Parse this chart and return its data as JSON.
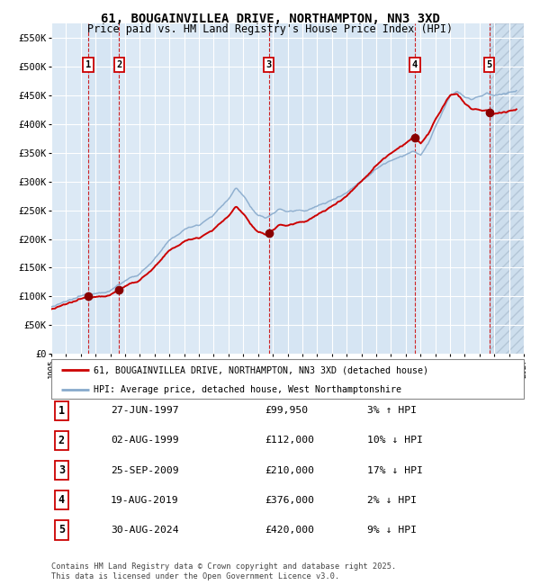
{
  "title": "61, BOUGAINVILLEA DRIVE, NORTHAMPTON, NN3 3XD",
  "subtitle": "Price paid vs. HM Land Registry's House Price Index (HPI)",
  "ylim": [
    0,
    575000
  ],
  "yticks": [
    0,
    50000,
    100000,
    150000,
    200000,
    250000,
    300000,
    350000,
    400000,
    450000,
    500000,
    550000
  ],
  "ytick_labels": [
    "£0",
    "£50K",
    "£100K",
    "£150K",
    "£200K",
    "£250K",
    "£300K",
    "£350K",
    "£400K",
    "£450K",
    "£500K",
    "£550K"
  ],
  "xlim_start": 1995.0,
  "xlim_end": 2027.0,
  "bg_color": "#dce9f5",
  "grid_color": "#ffffff",
  "sale_dates_decimal": [
    1997.49,
    1999.59,
    2009.73,
    2019.63,
    2024.66
  ],
  "sale_prices": [
    99950,
    112000,
    210000,
    376000,
    420000
  ],
  "sale_labels": [
    "1",
    "2",
    "3",
    "4",
    "5"
  ],
  "sale_date_strs": [
    "27-JUN-1997",
    "02-AUG-1999",
    "25-SEP-2009",
    "19-AUG-2019",
    "30-AUG-2024"
  ],
  "sale_hpi_pct": [
    "3% ↑ HPI",
    "10% ↓ HPI",
    "17% ↓ HPI",
    "2% ↓ HPI",
    "9% ↓ HPI"
  ],
  "red_line_color": "#cc0000",
  "blue_line_color": "#88aacc",
  "marker_color": "#880000",
  "dashed_line_color": "#cc0000",
  "label_box_color": "#cc0000",
  "footnote": "Contains HM Land Registry data © Crown copyright and database right 2025.\nThis data is licensed under the Open Government Licence v3.0.",
  "legend1": "61, BOUGAINVILLEA DRIVE, NORTHAMPTON, NN3 3XD (detached house)",
  "legend2": "HPI: Average price, detached house, West Northamptonshire"
}
